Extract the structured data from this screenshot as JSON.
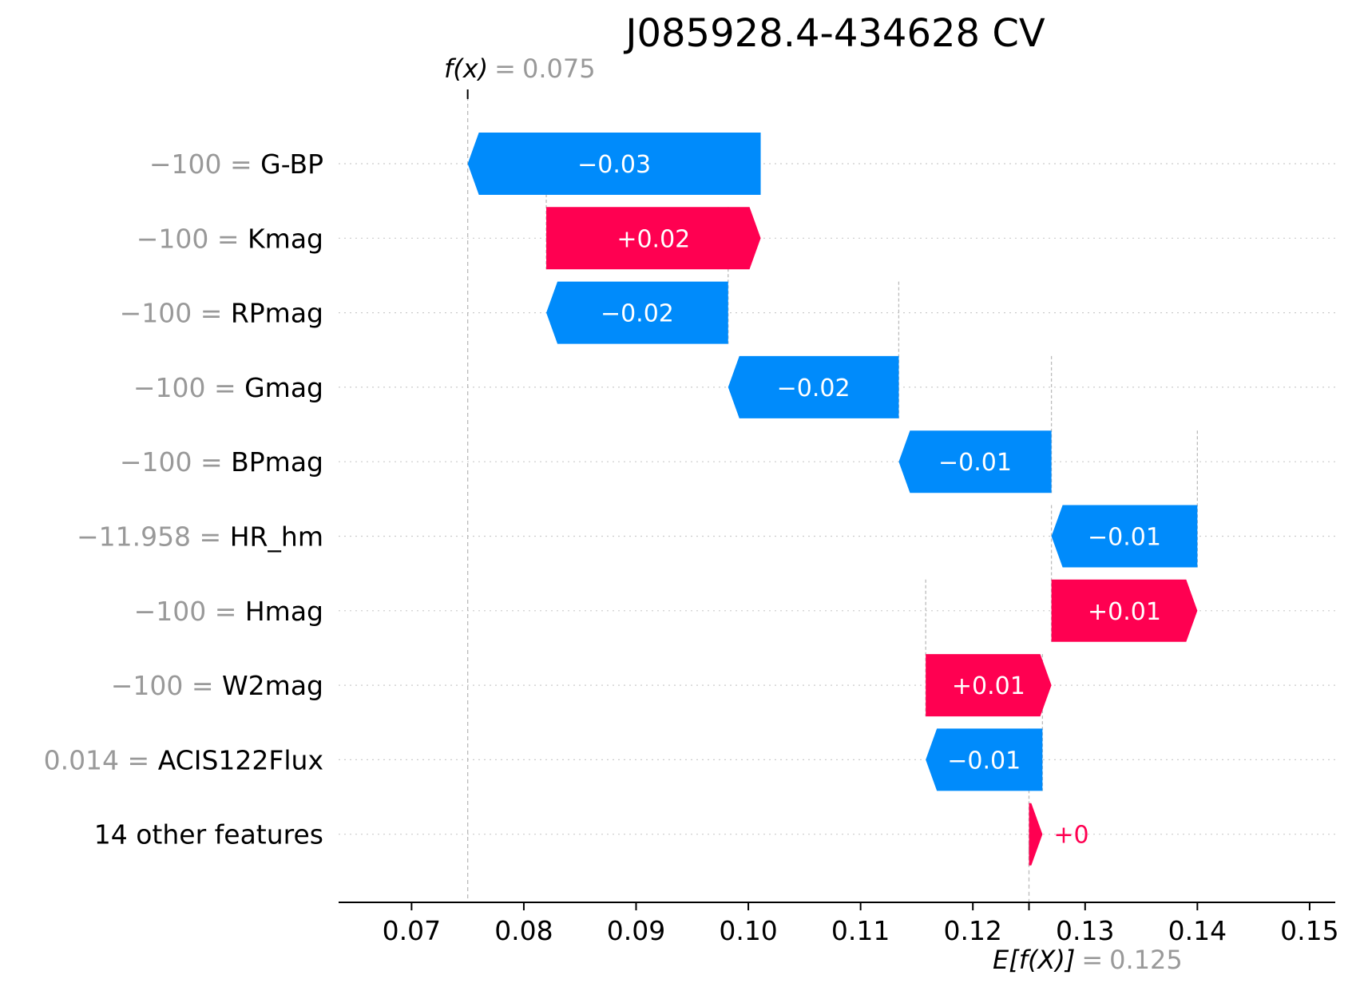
{
  "chart_data": {
    "type": "waterfall",
    "title": "J085928.4-434628 CV",
    "fx_label": "f(x)",
    "fx_value": "0.075",
    "fx": 0.075,
    "efx_label": "E[f(X)]",
    "efx_value": "0.125",
    "base_value": 0.125,
    "xlim": [
      0.0635,
      0.1515
    ],
    "xticks": [
      {
        "value": 0.07,
        "label": "0.07"
      },
      {
        "value": 0.08,
        "label": "0.08"
      },
      {
        "value": 0.09,
        "label": "0.09"
      },
      {
        "value": 0.1,
        "label": "0.10"
      },
      {
        "value": 0.11,
        "label": "0.11"
      },
      {
        "value": 0.12,
        "label": "0.12"
      },
      {
        "value": 0.13,
        "label": "0.13"
      },
      {
        "value": 0.14,
        "label": "0.14"
      },
      {
        "value": 0.15,
        "label": "0.15"
      }
    ],
    "colors": {
      "positive": "#ff0051",
      "negative": "#008bfb",
      "muted": "#999999"
    },
    "features": [
      {
        "name": "G-BP",
        "feature_value": "−100",
        "start": 0.1011,
        "end": 0.075,
        "label": "−0.03"
      },
      {
        "name": "Kmag",
        "feature_value": "−100",
        "start": 0.082,
        "end": 0.1011,
        "label": "+0.02"
      },
      {
        "name": "RPmag",
        "feature_value": "−100",
        "start": 0.0982,
        "end": 0.082,
        "label": "−0.02"
      },
      {
        "name": "Gmag",
        "feature_value": "−100",
        "start": 0.1134,
        "end": 0.0982,
        "label": "−0.02"
      },
      {
        "name": "BPmag",
        "feature_value": "−100",
        "start": 0.127,
        "end": 0.1134,
        "label": "−0.01"
      },
      {
        "name": "HR_hm",
        "feature_value": "−11.958",
        "start": 0.14,
        "end": 0.127,
        "label": "−0.01"
      },
      {
        "name": "Hmag",
        "feature_value": "−100",
        "start": 0.127,
        "end": 0.14,
        "label": "+0.01"
      },
      {
        "name": "W2mag",
        "feature_value": "−100",
        "start": 0.1158,
        "end": 0.127,
        "label": "+0.01"
      },
      {
        "name": "ACIS122Flux",
        "feature_value": "0.014",
        "start": 0.1262,
        "end": 0.1158,
        "label": "−0.01"
      },
      {
        "name": "14 other features",
        "feature_value": "",
        "start": 0.125,
        "end": 0.1262,
        "label": "+0"
      }
    ]
  }
}
